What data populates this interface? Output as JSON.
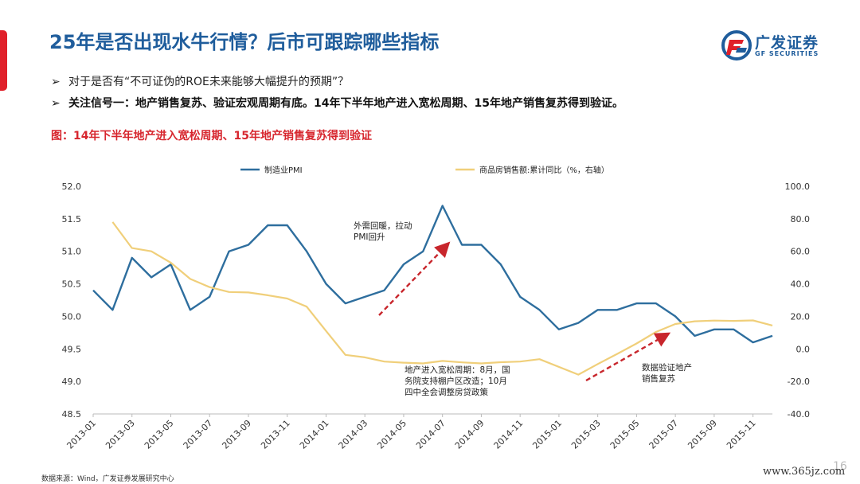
{
  "header": {
    "title": "25年是否出现水牛行情？后市可跟踪哪些指标",
    "logo_cn": "广发证券",
    "logo_en": "GF SECURITIES"
  },
  "bullets": [
    "对于是否有“不可证伪的ROE未来能够大幅提升的预期”？",
    "关注信号一：地产销售复苏、验证宏观周期有底。14年下半年地产进入宽松周期、15年地产销售复苏得到验证。"
  ],
  "caption": "图：14年下半年地产进入宽松周期、15年地产销售复苏得到验证",
  "footer": {
    "source": "数据来源：Wind，广发证券发展研究中心",
    "page": "16",
    "watermark": "www.365jz.com"
  },
  "colors": {
    "pmi": "#2e6e9e",
    "sales": "#f0cf7a",
    "arrow": "#c8262c",
    "title": "#1f5d9c",
    "accent_red": "#d7262e"
  },
  "chart_data": {
    "type": "line",
    "x_tick_labels": [
      "2013-01",
      "2013-03",
      "2013-05",
      "2013-07",
      "2013-09",
      "2013-11",
      "2014-01",
      "2014-03",
      "2014-05",
      "2014-07",
      "2014-09",
      "2014-11",
      "2015-01",
      "2015-03",
      "2015-05",
      "2015-07",
      "2015-09",
      "2015-11"
    ],
    "left_axis": {
      "ylim": [
        48.5,
        52.0
      ],
      "ticks": [
        "48.5",
        "49.0",
        "49.5",
        "50.0",
        "50.5",
        "51.0",
        "51.5",
        "52.0"
      ]
    },
    "right_axis": {
      "ylim": [
        -40,
        100
      ],
      "ticks": [
        "-40.0",
        "-20.0",
        "0.0",
        "20.0",
        "40.0",
        "60.0",
        "80.0",
        "100.0"
      ]
    },
    "legend_position": "top",
    "series": [
      {
        "name": "制造业PMI",
        "axis": "left",
        "x": [
          "2013-01",
          "2013-02",
          "2013-03",
          "2013-04",
          "2013-05",
          "2013-06",
          "2013-07",
          "2013-08",
          "2013-09",
          "2013-10",
          "2013-11",
          "2013-12",
          "2014-01",
          "2014-02",
          "2014-03",
          "2014-04",
          "2014-05",
          "2014-06",
          "2014-07",
          "2014-08",
          "2014-09",
          "2014-10",
          "2014-11",
          "2014-12",
          "2015-01",
          "2015-02",
          "2015-03",
          "2015-04",
          "2015-05",
          "2015-06",
          "2015-07",
          "2015-08",
          "2015-09",
          "2015-10",
          "2015-11",
          "2015-12"
        ],
        "values": [
          50.4,
          50.1,
          50.9,
          50.6,
          50.8,
          50.1,
          50.3,
          51.0,
          51.1,
          51.4,
          51.4,
          51.0,
          50.5,
          50.2,
          50.3,
          50.4,
          50.8,
          51.0,
          51.7,
          51.1,
          51.1,
          50.8,
          50.3,
          50.1,
          49.8,
          49.9,
          50.1,
          50.1,
          50.2,
          50.2,
          50.0,
          49.7,
          49.8,
          49.8,
          49.6,
          49.7
        ]
      },
      {
        "name": "商品房销售额:累计同比（%，右轴）",
        "axis": "right",
        "x": [
          "2013-02",
          "2013-03",
          "2013-04",
          "2013-05",
          "2013-06",
          "2013-07",
          "2013-08",
          "2013-09",
          "2013-10",
          "2013-11",
          "2013-12",
          "2014-01",
          "2014-02",
          "2014-03",
          "2014-04",
          "2014-05",
          "2014-06",
          "2014-07",
          "2014-08",
          "2014-09",
          "2014-10",
          "2014-11",
          "2014-12",
          "2015-01",
          "2015-02",
          "2015-03",
          "2015-04",
          "2015-05",
          "2015-06",
          "2015-07",
          "2015-08",
          "2015-09",
          "2015-10",
          "2015-11",
          "2015-12"
        ],
        "values": [
          78,
          62,
          60,
          53,
          43,
          38,
          35,
          34.7,
          33,
          31,
          26,
          11,
          -3.7,
          -5.2,
          -7.8,
          -8.5,
          -8.9,
          -7.4,
          -8.3,
          -8.9,
          -8.2,
          -7.8,
          -6.3,
          null,
          -15.8,
          -9.3,
          -3.1,
          3.3,
          10.4,
          15.3,
          17,
          17.4,
          17.2,
          17.5,
          14.4
        ]
      }
    ],
    "annotations": [
      {
        "text": [
          "外需回暖，拉动",
          "PMI回升"
        ],
        "anchor": "2014-03"
      },
      {
        "text": [
          "地产进入宽松周期：8月，国",
          "务院支持棚户区改造；10月",
          "四中全会调整房贷政策"
        ],
        "anchor": "2014-07"
      },
      {
        "text": [
          "数据验证地产",
          "销售复苏"
        ],
        "anchor": "2015-07"
      }
    ]
  }
}
